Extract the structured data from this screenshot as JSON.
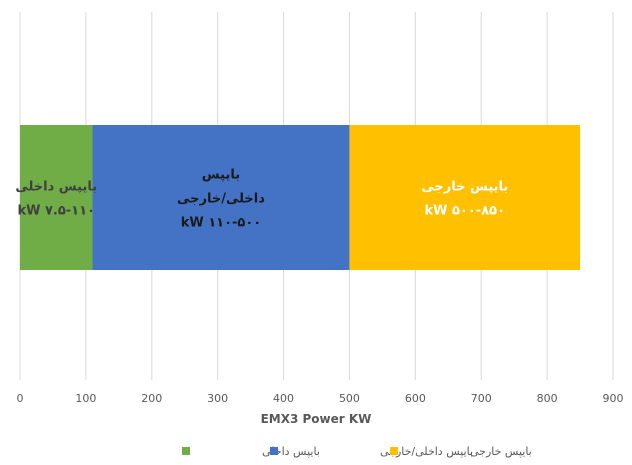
{
  "chart_data": {
    "type": "bar",
    "orientation": "horizontal",
    "stacked": true,
    "xlabel": "EMX3 Power KW",
    "xlim": [
      0,
      900
    ],
    "xticks": [
      0,
      100,
      200,
      300,
      400,
      500,
      600,
      700,
      800,
      900
    ],
    "grid": true,
    "legend_position": "bottom",
    "series": [
      {
        "name": "بایپس داخلی",
        "start": 0,
        "end": 110,
        "color": "#70ad47",
        "label_lines": [
          "بایپس داخلی",
          "kW ۷.۵-۱۱۰"
        ],
        "label_color": "#404040"
      },
      {
        "name": "بایپس داخلی/خارجی",
        "start": 110,
        "end": 500,
        "color": "#4472c4",
        "label_lines": [
          "بایپس",
          "داخلی/خارجی",
          "kW ۱۱۰-۵۰۰"
        ],
        "label_color": "#1a1a1a"
      },
      {
        "name": "بایپس خارجی",
        "start": 500,
        "end": 850,
        "color": "#ffc000",
        "label_lines": [
          "بایپس خارجی",
          "kW ۵۰۰-۸۵۰"
        ],
        "label_color": "#ffffff"
      }
    ]
  }
}
